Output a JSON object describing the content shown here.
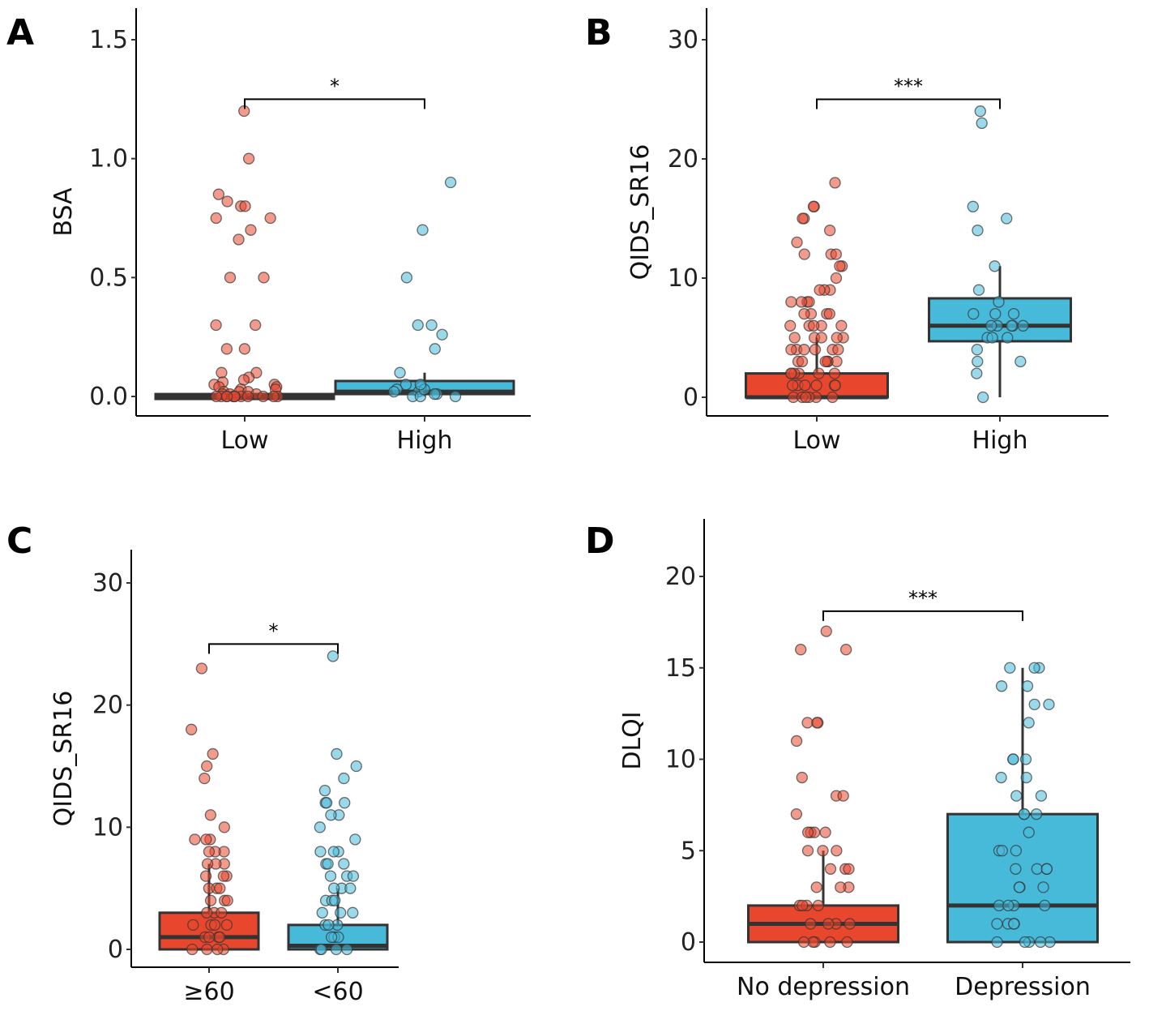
{
  "chart_data": [
    {
      "type": "box",
      "letter": "A",
      "ylabel": "BSA",
      "ylim": [
        0,
        1.6
      ],
      "yticks": [
        0,
        0.5,
        1.0,
        1.5
      ],
      "ytick_labels": [
        "0.0",
        "0.5",
        "1.0",
        "1.5"
      ],
      "categories": [
        "Low",
        "High"
      ],
      "significance": "*",
      "sig_y": 1.25,
      "groups": [
        {
          "name": "Low",
          "color": "#e8472e",
          "min": 0,
          "q1": 0,
          "median": 0,
          "q3": 0.01,
          "max": 0.02,
          "points": [
            1.2,
            1.0,
            0.85,
            0.82,
            0.8,
            0.8,
            0.75,
            0.75,
            0.7,
            0.66,
            0.5,
            0.5,
            0.3,
            0.3,
            0.2,
            0.2,
            0.1,
            0.1,
            0.08,
            0.07,
            0.06,
            0.05,
            0.05,
            0.04,
            0.04,
            0.03,
            0.03,
            0.02,
            0.02,
            0.02,
            0.01,
            0.01,
            0.01,
            0,
            0,
            0,
            0,
            0,
            0,
            0,
            0,
            0,
            0,
            0,
            0
          ]
        },
        {
          "name": "High",
          "color": "#47b9d9",
          "min": 0,
          "q1": 0.01,
          "median": 0.02,
          "q3": 0.065,
          "max": 0.1,
          "points": [
            0.9,
            0.7,
            0.5,
            0.3,
            0.3,
            0.26,
            0.2,
            0.1,
            0.05,
            0.04,
            0.03,
            0.02,
            0.02,
            0.01,
            0.01,
            0,
            0,
            0,
            0.03,
            0.05
          ]
        }
      ]
    },
    {
      "type": "box",
      "letter": "B",
      "ylabel": "QIDS_SR16",
      "ylim": [
        0,
        32
      ],
      "yticks": [
        0,
        10,
        20,
        30
      ],
      "ytick_labels": [
        "0",
        "10",
        "20",
        "30"
      ],
      "categories": [
        "Low",
        "High"
      ],
      "significance": "***",
      "sig_y": 25,
      "groups": [
        {
          "name": "Low",
          "color": "#e8472e",
          "min": 0,
          "q1": 0,
          "median": 0,
          "q3": 2,
          "max": 5,
          "points": [
            18,
            16,
            16,
            15,
            15,
            14,
            13,
            12,
            12,
            12,
            11,
            11,
            10,
            9,
            9,
            9,
            8,
            8,
            8,
            8,
            7,
            7,
            7,
            7,
            6,
            6,
            6,
            6,
            6,
            5,
            5,
            5,
            5,
            5,
            4,
            4,
            4,
            4,
            4,
            4,
            3,
            3,
            3,
            3,
            3,
            3,
            2,
            2,
            2,
            2,
            2,
            2,
            1,
            1,
            1,
            1,
            1,
            1,
            0,
            0,
            0,
            0,
            0,
            0
          ]
        },
        {
          "name": "High",
          "color": "#47b9d9",
          "min": 0,
          "q1": 4.7,
          "median": 6,
          "q3": 8.3,
          "max": 11,
          "points": [
            24,
            23,
            16,
            15,
            14,
            11,
            9,
            8,
            7,
            7,
            7,
            6,
            6,
            6,
            6,
            6,
            5,
            5,
            5,
            4,
            3,
            3,
            2,
            0
          ]
        }
      ]
    },
    {
      "type": "box",
      "letter": "C",
      "ylabel": "QIDS_SR16",
      "ylim": [
        0,
        32
      ],
      "yticks": [
        0,
        10,
        20,
        30
      ],
      "ytick_labels": [
        "0",
        "10",
        "20",
        "30"
      ],
      "categories": [
        "≥60",
        "<60"
      ],
      "significance": "*",
      "sig_y": 25,
      "groups": [
        {
          "name": "≥60",
          "color": "#e8472e",
          "min": 0,
          "q1": 0,
          "median": 1,
          "q3": 3,
          "max": 7,
          "points": [
            23,
            18,
            16,
            15,
            14,
            11,
            10,
            9,
            9,
            9,
            8,
            8,
            8,
            7,
            7,
            7,
            6,
            6,
            6,
            5,
            5,
            5,
            4,
            4,
            4,
            3,
            3,
            3,
            2,
            2,
            2,
            2,
            1,
            1,
            1,
            1,
            0,
            0,
            0,
            0
          ]
        },
        {
          "name": "<60",
          "color": "#47b9d9",
          "min": 0,
          "q1": 0,
          "median": 0.3,
          "q3": 2,
          "max": 5,
          "points": [
            24,
            16,
            15,
            14,
            13,
            12,
            12,
            12,
            11,
            11,
            10,
            9,
            8,
            8,
            8,
            7,
            7,
            7,
            6,
            6,
            6,
            5,
            5,
            5,
            4,
            4,
            4,
            3,
            3,
            3,
            2,
            2,
            2,
            1,
            1,
            1,
            0,
            0,
            0,
            0
          ]
        }
      ]
    },
    {
      "type": "box",
      "letter": "D",
      "ylabel": "DLQI",
      "ylim": [
        0,
        22
      ],
      "yticks": [
        0,
        5,
        10,
        15,
        20
      ],
      "ytick_labels": [
        "0",
        "5",
        "10",
        "15",
        "20"
      ],
      "categories": [
        "No depression",
        "Depression"
      ],
      "significance": "***",
      "sig_y": 18.1,
      "groups": [
        {
          "name": "No depression",
          "color": "#e8472e",
          "min": 0,
          "q1": 0,
          "median": 1,
          "q3": 2,
          "max": 5,
          "points": [
            17,
            16,
            16,
            12,
            12,
            12,
            11,
            9,
            8,
            8,
            7,
            6,
            6,
            6,
            6,
            5,
            5,
            5,
            4,
            4,
            4,
            3,
            3,
            3,
            2,
            2,
            2,
            2,
            1,
            1,
            1,
            1,
            0,
            0,
            0,
            0,
            0
          ]
        },
        {
          "name": "Depression",
          "color": "#47b9d9",
          "min": 0,
          "q1": 0,
          "median": 2,
          "q3": 7,
          "max": 15,
          "points": [
            15,
            15,
            15,
            14,
            14,
            13,
            13,
            12,
            10,
            10,
            10,
            9,
            9,
            8,
            8,
            7,
            7,
            7,
            6,
            5,
            5,
            5,
            4,
            4,
            4,
            4,
            3,
            3,
            3,
            2,
            2,
            2,
            2,
            1,
            1,
            1,
            1,
            0,
            0,
            0,
            0,
            0
          ]
        }
      ]
    }
  ]
}
